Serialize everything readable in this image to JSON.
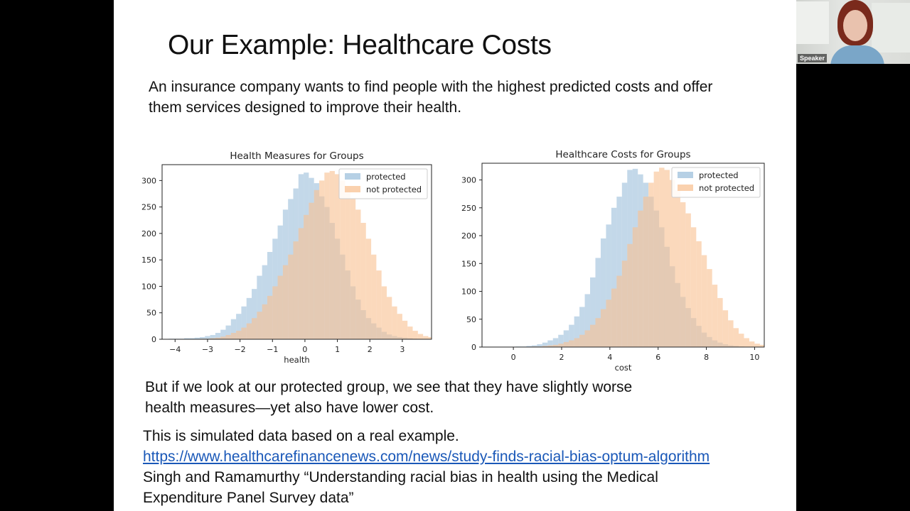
{
  "slide": {
    "title": "Our Example: Healthcare Costs",
    "intro_line1": "An insurance company wants to find people with the highest predicted costs and offer",
    "intro_line2": "them services designed to improve their health.",
    "finding_line1": "But if we look at our protected group, we see that they have slightly worse",
    "finding_line2": "health measures—yet also have lower cost.",
    "note_line1": "This is simulated data based on a real example.",
    "link": "https://www.healthcarefinancenews.com/news/study-finds-racial-bias-optum-algorithm",
    "citation_line1": "Singh and Ramamurthy “Understanding racial bias in health using the Medical",
    "citation_line2": "Expenditure Panel Survey data”"
  },
  "speaker": {
    "label": "Speaker"
  },
  "colors": {
    "protected": "#9ec0dc",
    "not_protected": "#f8c293",
    "overlap": "#cca07a"
  },
  "chart_data": [
    {
      "type": "histogram",
      "title": "Health Measures for Groups",
      "xlabel": "health",
      "ylabel": "",
      "xlim": [
        -4.4,
        3.9
      ],
      "ylim": [
        0,
        330
      ],
      "xticks": [
        -4,
        -3,
        -2,
        -1,
        0,
        1,
        2,
        3
      ],
      "xtick_labels": [
        "−4",
        "−3",
        "−2",
        "−1",
        "0",
        "1",
        "2",
        "3"
      ],
      "yticks": [
        0,
        50,
        100,
        150,
        200,
        250,
        300
      ],
      "legend": "top-right",
      "bin_start": -4.2,
      "bin_width": 0.16,
      "series": [
        {
          "name": "protected",
          "values": [
            1,
            1,
            1,
            2,
            2,
            3,
            4,
            6,
            8,
            12,
            18,
            26,
            38,
            48,
            62,
            78,
            95,
            120,
            140,
            165,
            190,
            215,
            245,
            265,
            285,
            312,
            315,
            305,
            295,
            270,
            250,
            220,
            190,
            160,
            130,
            100,
            75,
            55,
            40,
            30,
            22,
            14,
            9,
            6,
            4,
            3,
            2,
            1
          ]
        },
        {
          "name": "not protected",
          "values": [
            0,
            0,
            0,
            0,
            0,
            0,
            1,
            1,
            2,
            3,
            5,
            8,
            12,
            16,
            22,
            30,
            40,
            52,
            66,
            82,
            100,
            120,
            140,
            160,
            185,
            210,
            235,
            258,
            282,
            300,
            315,
            318,
            312,
            300,
            285,
            265,
            245,
            220,
            190,
            160,
            130,
            100,
            80,
            62,
            48,
            35,
            24,
            16,
            10,
            6,
            4,
            3,
            2,
            1,
            1
          ]
        }
      ]
    },
    {
      "type": "histogram",
      "title": "Healthcare Costs for Groups",
      "xlabel": "cost",
      "ylabel": "",
      "xlim": [
        -1.3,
        10.4
      ],
      "ylim": [
        0,
        330
      ],
      "xticks": [
        0,
        2,
        4,
        6,
        8,
        10
      ],
      "xtick_labels": [
        "0",
        "2",
        "4",
        "6",
        "8",
        "10"
      ],
      "yticks": [
        0,
        50,
        100,
        150,
        200,
        250,
        300
      ],
      "legend": "top-right",
      "bin_start": -1.0,
      "bin_width": 0.22,
      "series": [
        {
          "name": "protected",
          "values": [
            0,
            0,
            0,
            0,
            0,
            1,
            1,
            2,
            3,
            5,
            8,
            12,
            16,
            22,
            30,
            40,
            55,
            72,
            95,
            125,
            160,
            195,
            220,
            250,
            270,
            295,
            318,
            320,
            310,
            295,
            270,
            245,
            215,
            180,
            145,
            115,
            90,
            70,
            52,
            38,
            26,
            18,
            12,
            8,
            5,
            3,
            2,
            1
          ]
        },
        {
          "name": "not protected",
          "values": [
            0,
            0,
            0,
            0,
            0,
            0,
            0,
            0,
            1,
            1,
            2,
            3,
            4,
            6,
            9,
            12,
            16,
            22,
            30,
            40,
            52,
            68,
            85,
            105,
            128,
            155,
            185,
            215,
            245,
            270,
            295,
            315,
            322,
            318,
            300,
            282,
            260,
            240,
            215,
            190,
            165,
            140,
            112,
            88,
            66,
            48,
            34,
            24,
            16,
            10,
            6,
            4,
            2,
            1,
            1,
            0
          ]
        }
      ]
    }
  ]
}
